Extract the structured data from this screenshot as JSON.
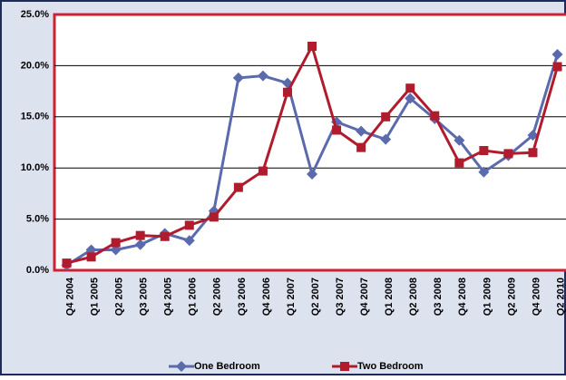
{
  "chart_data": {
    "type": "line",
    "categories": [
      "Q4 2004",
      "Q1 2005",
      "Q2 2005",
      "Q3 2005",
      "Q4 2005",
      "Q1 2006",
      "Q2 2006",
      "Q3 2006",
      "Q4 2006",
      "Q1 2007",
      "Q2 2007",
      "Q3 2007",
      "Q4 2007",
      "Q1 2008",
      "Q2 2008",
      "Q3 2008",
      "Q4 2008",
      "Q1 2009",
      "Q2 2009",
      "Q4 2009",
      "Q2 2010"
    ],
    "series": [
      {
        "name": "One Bedroom",
        "color": "#5a6aad",
        "marker": "diamond",
        "values": [
          0.5,
          2.0,
          2.0,
          2.5,
          3.6,
          2.9,
          5.8,
          18.8,
          19.0,
          18.3,
          9.4,
          14.5,
          13.6,
          12.8,
          16.8,
          14.8,
          12.7,
          9.6,
          11.2,
          13.2,
          21.1
        ]
      },
      {
        "name": "Two Bedroom",
        "color": "#b01c2e",
        "marker": "square",
        "values": [
          0.7,
          1.3,
          2.7,
          3.4,
          3.3,
          4.4,
          5.2,
          8.1,
          9.7,
          17.4,
          21.9,
          13.7,
          12.0,
          15.0,
          17.8,
          15.1,
          10.5,
          11.7,
          11.4,
          11.5,
          19.9
        ]
      }
    ],
    "ylim": [
      0,
      25
    ],
    "yticks": [
      {
        "value": 0,
        "label": "0.0%"
      },
      {
        "value": 5,
        "label": "5.0%"
      },
      {
        "value": 10,
        "label": "10.0%"
      },
      {
        "value": 15,
        "label": "15.0%"
      },
      {
        "value": 20,
        "label": "20.0%"
      },
      {
        "value": 25,
        "label": "25.0%"
      }
    ],
    "grid": true,
    "legend": "bottom"
  }
}
